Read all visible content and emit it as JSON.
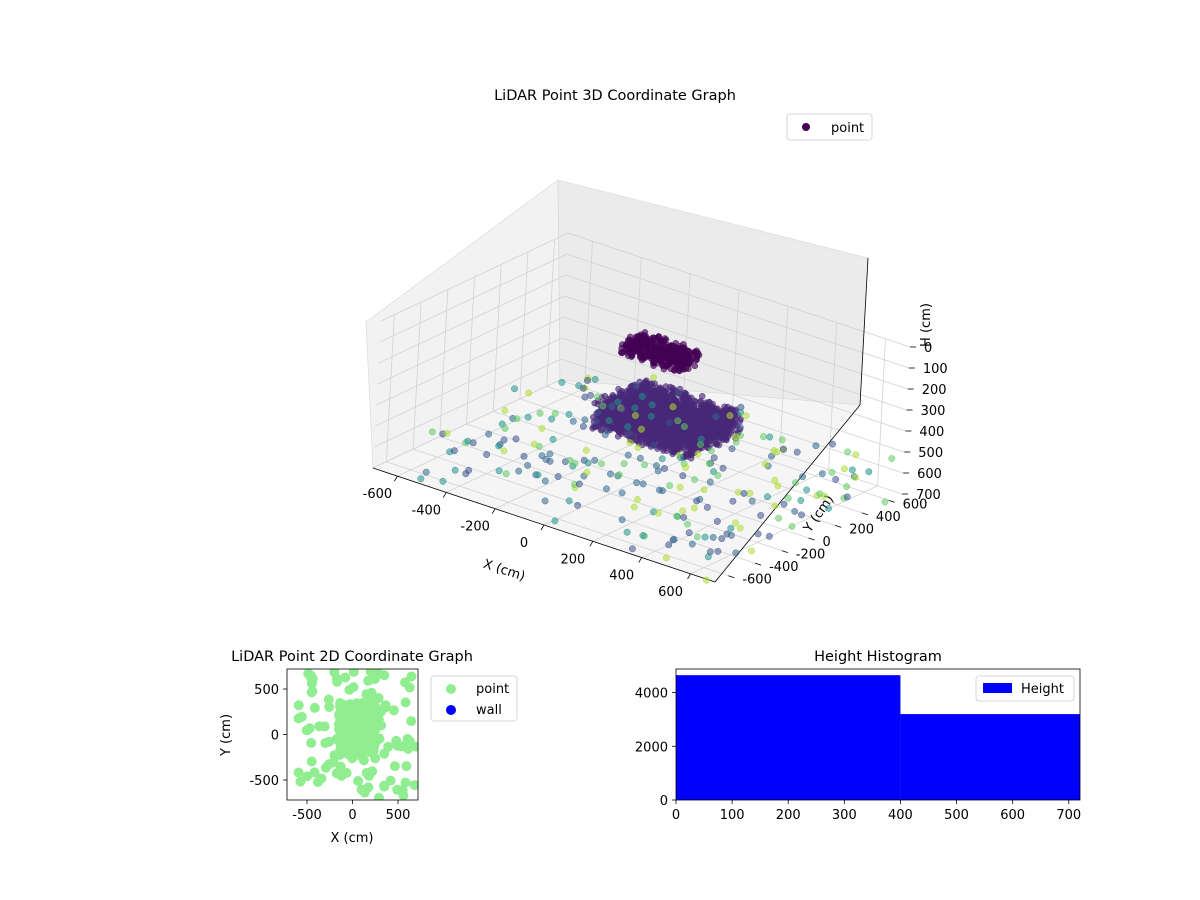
{
  "chart_data": [
    {
      "type": "scatter",
      "title": "LiDAR Point 3D Coordinate Graph",
      "projection": "3d",
      "xlabel": "X (cm)",
      "ylabel": "Y (cm)",
      "zlabel": "H (cm)",
      "x_ticks": [
        "-600",
        "-400",
        "-200",
        "0",
        "200",
        "400",
        "600"
      ],
      "y_ticks": [
        "-600",
        "-400",
        "-200",
        "0",
        "200",
        "400",
        "600"
      ],
      "z_ticks": [
        "0",
        "100",
        "200",
        "300",
        "400",
        "500",
        "600",
        "700"
      ],
      "xlim": [
        -700,
        700
      ],
      "ylim": [
        -700,
        700
      ],
      "zlim": [
        0,
        700
      ],
      "z_axis_inverted": true,
      "colormap": "viridis",
      "legend": {
        "labels": [
          "point"
        ],
        "placement": "upper-right"
      },
      "grid": true,
      "series": [
        {
          "name": "point",
          "color": "#440154",
          "clusters": [
            {
              "x_range": [
                -150,
                250
              ],
              "y_range": [
                -100,
                300
              ],
              "h_range": [
                350,
                480
              ],
              "count": 2500,
              "color": "#482878"
            },
            {
              "x_range": [
                -100,
                150
              ],
              "y_range": [
                0,
                150
              ],
              "h_range": [
                60,
                140
              ],
              "count": 400,
              "color": "#440154"
            },
            {
              "x_range": [
                -600,
                700
              ],
              "y_range": [
                -700,
                700
              ],
              "h_range": [
                500,
                720
              ],
              "count": 250,
              "color": "#31688e"
            }
          ]
        }
      ]
    },
    {
      "type": "scatter",
      "title": "LiDAR Point 2D Coordinate Graph",
      "xlabel": "X (cm)",
      "ylabel": "Y (cm)",
      "x_ticks": [
        "-500",
        "0",
        "500"
      ],
      "y_ticks": [
        "-500",
        "0",
        "500"
      ],
      "xlim": [
        -720,
        720
      ],
      "ylim": [
        -720,
        720
      ],
      "legend": {
        "labels": [
          "point",
          "wall"
        ],
        "placement": "outside-right"
      },
      "series": [
        {
          "name": "point",
          "color": "#90ee90",
          "clusters": [
            {
              "x_range": [
                -150,
                250
              ],
              "y_range": [
                -200,
                350
              ],
              "count": 300
            },
            {
              "x_range": [
                -600,
                700
              ],
              "y_range": [
                -700,
                700
              ],
              "count": 120
            }
          ]
        },
        {
          "name": "wall",
          "color": "#0000ff",
          "points": []
        }
      ]
    },
    {
      "type": "bar",
      "title": "Height Histogram",
      "series": [
        {
          "name": "Height",
          "color": "#0000ff"
        }
      ],
      "bins": [
        {
          "from": 0,
          "to": 400,
          "value": 4650
        },
        {
          "from": 400,
          "to": 720,
          "value": 3200
        }
      ],
      "x_ticks": [
        "0",
        "100",
        "200",
        "300",
        "400",
        "500",
        "600",
        "700"
      ],
      "y_ticks": [
        "0",
        "2000",
        "4000"
      ],
      "xlim": [
        0,
        720
      ],
      "ylim": [
        0,
        4880
      ],
      "legend": {
        "labels": [
          "Height"
        ],
        "placement": "upper-right"
      }
    }
  ]
}
